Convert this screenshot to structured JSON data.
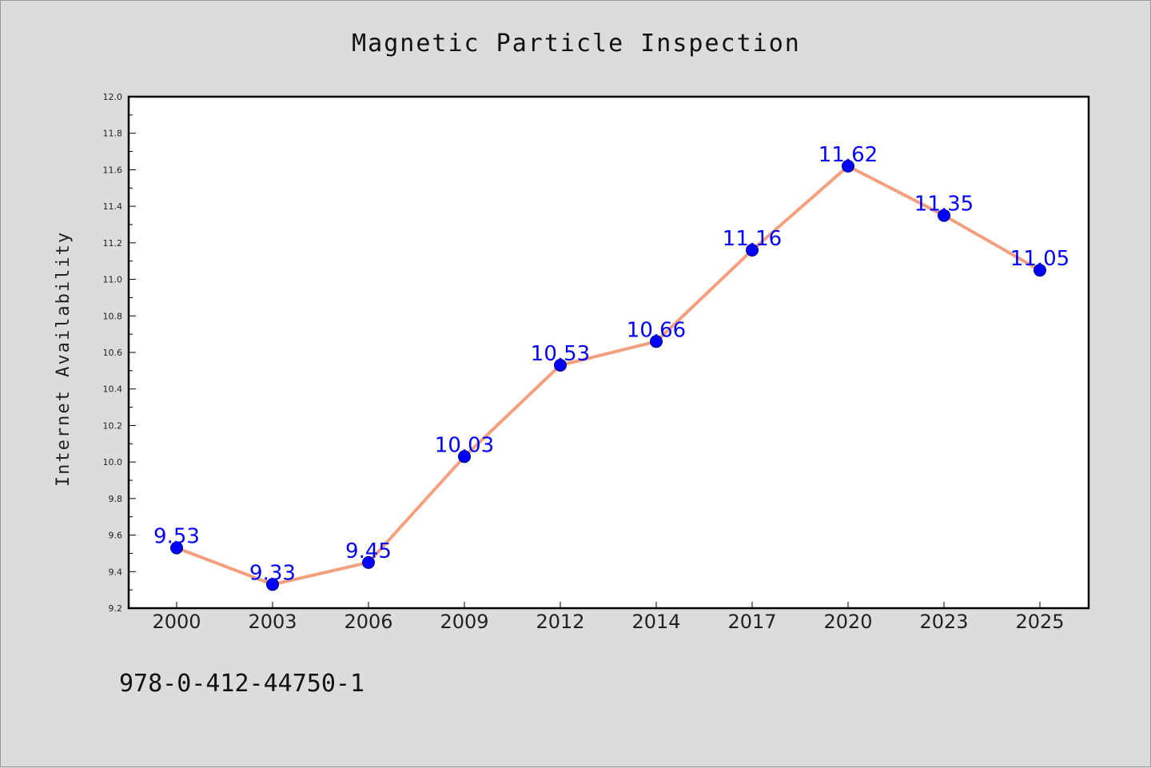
{
  "colors": {
    "background": "#dcdcdc",
    "plot_background": "#ffffff",
    "line": "#f4a07e",
    "marker": "#0000ff",
    "data_label": "#0000ff",
    "axis": "#000000"
  },
  "footer": {
    "text": "978-0-412-44750-1"
  },
  "chart_data": {
    "type": "line",
    "title": "Magnetic Particle Inspection",
    "xlabel": "",
    "ylabel": "Internet Availability",
    "categories": [
      "2000",
      "2003",
      "2006",
      "2009",
      "2012",
      "2014",
      "2017",
      "2020",
      "2023",
      "2025"
    ],
    "series": [
      {
        "values": [
          9.53,
          9.33,
          9.45,
          10.03,
          10.53,
          10.66,
          11.16,
          11.62,
          11.35,
          11.05
        ],
        "data_labels": [
          "9.53",
          "9.33",
          "9.45",
          "10.03",
          "10.53",
          "10.66",
          "11.16",
          "11.62",
          "11.35",
          "11.05"
        ]
      }
    ],
    "ylim": [
      9.2,
      12.0
    ],
    "yticks": [
      "9.2",
      "9.4",
      "9.6",
      "9.8",
      "10.0",
      "10.2",
      "10.4",
      "10.6",
      "10.8",
      "11.0",
      "11.2",
      "11.4",
      "11.6",
      "11.8",
      "12.0"
    ],
    "grid": false,
    "legend": "none"
  }
}
